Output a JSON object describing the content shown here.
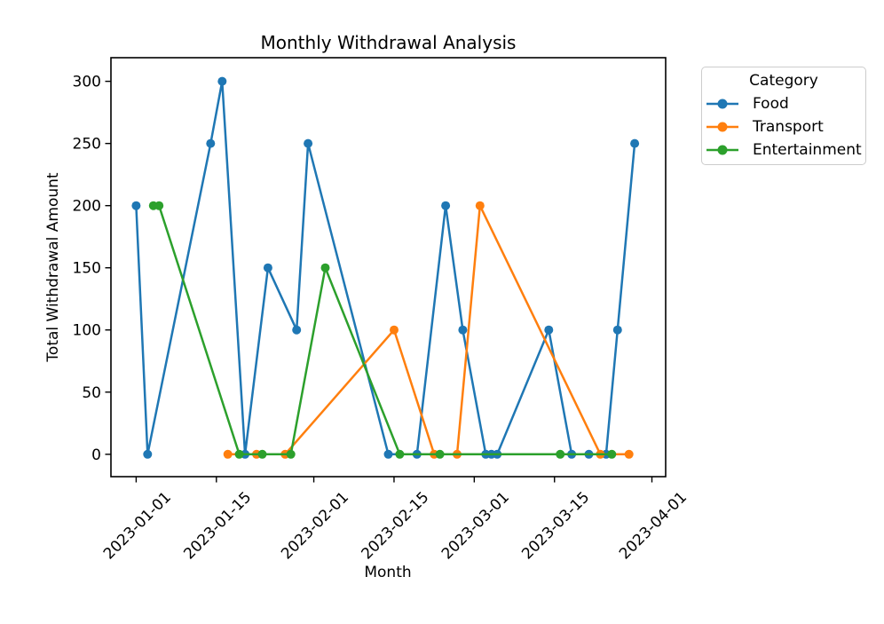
{
  "chart_data": {
    "type": "line",
    "title": "Monthly Withdrawal Analysis",
    "xlabel": "Month",
    "ylabel": "Total Withdrawal Amount",
    "legend_title": "Category",
    "legend_position": "upper right, outside axes",
    "grid": false,
    "x_epoch": "2023-01-01",
    "x_tick_labels": [
      "2023-01-01",
      "2023-01-15",
      "2023-02-01",
      "2023-02-15",
      "2023-03-01",
      "2023-03-15",
      "2023-04-01"
    ],
    "y_ticks": [
      0,
      50,
      100,
      150,
      200,
      250,
      300
    ],
    "ylim": [
      -18,
      319
    ],
    "xlim_days": [
      -4.4,
      92.4
    ],
    "series": [
      {
        "name": "Food",
        "color": "#1f77b4",
        "x": [
          "2023-01-01",
          "2023-01-03",
          "2023-01-14",
          "2023-01-16",
          "2023-01-20",
          "2023-01-24",
          "2023-01-29",
          "2023-01-31",
          "2023-02-14",
          "2023-02-19",
          "2023-02-24",
          "2023-02-27",
          "2023-03-03",
          "2023-03-04",
          "2023-03-05",
          "2023-03-14",
          "2023-03-18",
          "2023-03-21",
          "2023-03-24",
          "2023-03-26",
          "2023-03-29"
        ],
        "y": [
          200,
          0,
          250,
          300,
          0,
          150,
          100,
          250,
          0,
          0,
          200,
          100,
          0,
          0,
          0,
          100,
          0,
          0,
          0,
          100,
          250
        ]
      },
      {
        "name": "Transport",
        "color": "#ff7f0e",
        "x": [
          "2023-01-17",
          "2023-01-22",
          "2023-01-27",
          "2023-02-15",
          "2023-02-22",
          "2023-02-26",
          "2023-03-02",
          "2023-03-23",
          "2023-03-28"
        ],
        "y": [
          0,
          0,
          0,
          100,
          0,
          0,
          200,
          0,
          0
        ]
      },
      {
        "name": "Entertainment",
        "color": "#2ca02c",
        "x": [
          "2023-01-04",
          "2023-01-05",
          "2023-01-19",
          "2023-01-23",
          "2023-01-28",
          "2023-02-03",
          "2023-02-16",
          "2023-02-23",
          "2023-03-16",
          "2023-03-25"
        ],
        "y": [
          200,
          200,
          0,
          0,
          0,
          150,
          0,
          0,
          0,
          0
        ]
      }
    ]
  }
}
